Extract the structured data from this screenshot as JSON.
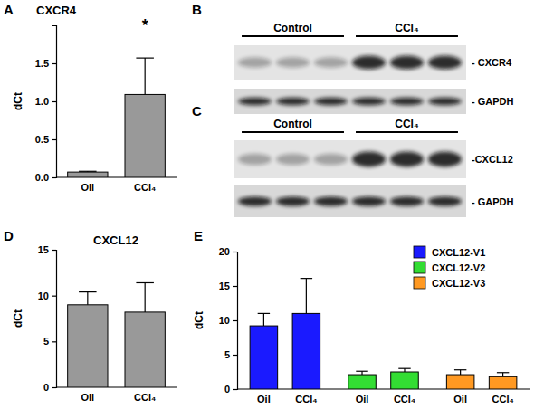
{
  "chart_data": [
    {
      "type": "bar",
      "panel": "A",
      "title": "CXCR4",
      "ylabel": "dCt",
      "categories": [
        "Oil",
        "CCl₄"
      ],
      "values": [
        0.07,
        1.09
      ],
      "errors": [
        0.01,
        0.48
      ],
      "color": "#999999",
      "ylim": [
        0,
        2
      ],
      "yticks": [
        {
          "value": 0,
          "label": "0.0"
        },
        0.5,
        {
          "value": 1,
          "label": "1.0"
        },
        1.5
      ],
      "annotations": [
        {
          "x": 1,
          "text": "*"
        }
      ]
    },
    {
      "type": "bar",
      "panel": "D",
      "title": "CXCL12",
      "ylabel": "dCt",
      "categories": [
        "Oil",
        "CCl₄"
      ],
      "values": [
        9.0,
        8.2
      ],
      "errors": [
        1.4,
        3.2
      ],
      "color": "#999999",
      "ylim": [
        0,
        15
      ],
      "yticks": [
        0,
        5,
        10,
        15
      ]
    },
    {
      "type": "bar",
      "panel": "E",
      "ylabel": "dCt",
      "categories": [
        "Oil",
        "CCl₄"
      ],
      "series": [
        {
          "name": "CXCL12-V1",
          "color": "#1a1aff",
          "values": [
            9.2,
            11.0
          ],
          "errors": [
            1.8,
            5.1
          ]
        },
        {
          "name": "CXCL12-V2",
          "color": "#33dd33",
          "values": [
            2.1,
            2.5
          ],
          "errors": [
            0.5,
            0.5
          ]
        },
        {
          "name": "CXCL12-V3",
          "color": "#ff9922",
          "values": [
            2.1,
            1.8
          ],
          "errors": [
            0.7,
            0.6
          ]
        }
      ],
      "ylim": [
        0,
        20
      ],
      "yticks": [
        0,
        5,
        10,
        15,
        20
      ],
      "legend": "upper right"
    }
  ],
  "blots": [
    {
      "panel": "B",
      "groups": [
        "Control",
        "CCl₄"
      ],
      "rows": [
        "- CXCR4",
        "- GAPDH"
      ]
    },
    {
      "panel": "C",
      "groups": [
        "Control",
        "CCl₄"
      ],
      "rows": [
        "-CXCL12",
        "- GAPDH"
      ]
    }
  ]
}
